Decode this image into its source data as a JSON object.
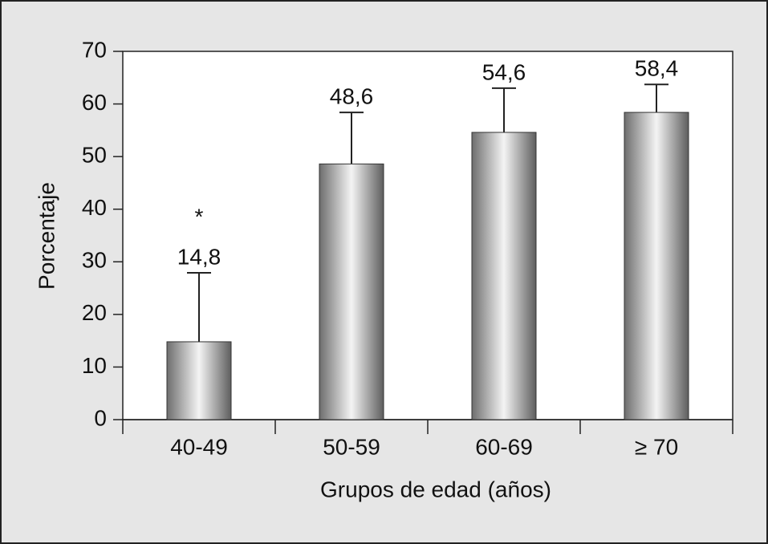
{
  "chart_data": {
    "type": "bar",
    "xlabel": "Grupos de edad (años)",
    "ylabel": "Porcentaje",
    "categories": [
      "40-49",
      "50-59",
      "60-69",
      "≥ 70"
    ],
    "values": [
      14.8,
      48.6,
      54.6,
      58.4
    ],
    "value_labels": [
      "14,8",
      "48,6",
      "54,6",
      "58,4"
    ],
    "errors": [
      13.1,
      9.8,
      8.4,
      5.3
    ],
    "annotation": "*",
    "color": "#8c8c8c",
    "ylim": [
      0,
      70
    ],
    "yticks": [
      0,
      10,
      20,
      30,
      40,
      50,
      60,
      70
    ]
  }
}
